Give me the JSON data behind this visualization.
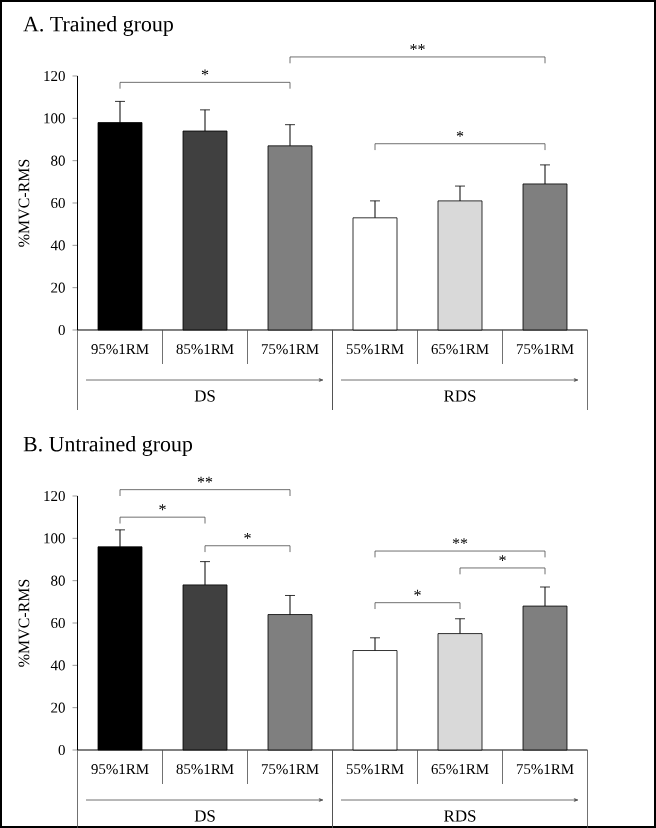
{
  "chart_data": [
    {
      "type": "bar",
      "title": "A. Trained group",
      "ylabel": "%MVC-RMS",
      "categories": [
        "95%1RM",
        "85%1RM",
        "75%1RM",
        "55%1RM",
        "65%1RM",
        "75%1RM"
      ],
      "values": [
        98,
        94,
        87,
        53,
        61,
        69
      ],
      "errors": [
        10,
        10,
        10,
        8,
        7,
        9
      ],
      "colors": [
        "#000000",
        "#404040",
        "#7f7f7f",
        "#ffffff",
        "#d9d9d9",
        "#7f7f7f"
      ],
      "ylim": [
        0,
        120
      ],
      "yticks": [
        0,
        20,
        40,
        60,
        80,
        100,
        120
      ],
      "annotations": [
        "*",
        "**",
        "*",
        "DS",
        "RDS"
      ]
    },
    {
      "type": "bar",
      "title": "B. Untrained group",
      "ylabel": "%MVC-RMS",
      "categories": [
        "95%1RM",
        "85%1RM",
        "75%1RM",
        "55%1RM",
        "65%1RM",
        "75%1RM"
      ],
      "values": [
        96,
        78,
        64,
        47,
        55,
        68
      ],
      "errors": [
        8,
        11,
        9,
        6,
        7,
        9
      ],
      "colors": [
        "#000000",
        "#404040",
        "#7f7f7f",
        "#ffffff",
        "#d9d9d9",
        "#7f7f7f"
      ],
      "ylim": [
        0,
        120
      ],
      "yticks": [
        0,
        20,
        40,
        60,
        80,
        100,
        120
      ],
      "annotations": [
        "**",
        "*",
        "*",
        "**",
        "*",
        "*",
        "DS",
        "RDS"
      ]
    }
  ]
}
